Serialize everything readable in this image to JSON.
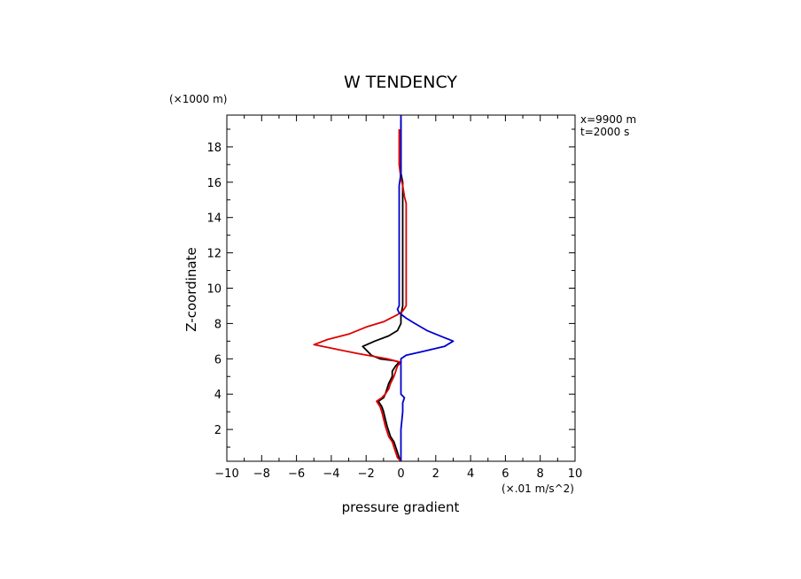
{
  "chart_data": {
    "type": "line",
    "title": "W TENDENCY",
    "xlabel": "pressure gradient",
    "x_units": "(×.01 m/s^2)",
    "ylabel": "Z-coordinate",
    "y_units": "(×1000 m)",
    "annotations": [
      "x=9900 m",
      "t=2000 s"
    ],
    "xlim": [
      -10,
      10
    ],
    "ylim": [
      0.2,
      19.8
    ],
    "xticks": [
      -10,
      -8,
      -6,
      -4,
      -2,
      0,
      2,
      4,
      6,
      8,
      10
    ],
    "yticks": [
      2,
      4,
      6,
      8,
      10,
      12,
      14,
      16,
      18
    ],
    "grid": false,
    "series": [
      {
        "color": "#000000",
        "points": [
          [
            0.0,
            0.2
          ],
          [
            -0.1,
            0.4
          ],
          [
            -0.2,
            0.7
          ],
          [
            -0.3,
            1.0
          ],
          [
            -0.4,
            1.3
          ],
          [
            -0.6,
            1.6
          ],
          [
            -0.8,
            2.2
          ],
          [
            -0.9,
            2.6
          ],
          [
            -1.0,
            3.0
          ],
          [
            -1.1,
            3.3
          ],
          [
            -1.3,
            3.6
          ],
          [
            -1.0,
            3.8
          ],
          [
            -0.9,
            4.0
          ],
          [
            -0.8,
            4.3
          ],
          [
            -0.7,
            4.6
          ],
          [
            -0.5,
            5.0
          ],
          [
            -0.5,
            5.3
          ],
          [
            -0.3,
            5.6
          ],
          [
            -0.1,
            5.8
          ],
          [
            -0.4,
            5.9
          ],
          [
            -1.2,
            6.0
          ],
          [
            -1.7,
            6.2
          ],
          [
            -2.2,
            6.7
          ],
          [
            -1.5,
            7.0
          ],
          [
            -0.7,
            7.3
          ],
          [
            -0.2,
            7.6
          ],
          [
            0.0,
            8.0
          ],
          [
            0.0,
            8.5
          ],
          [
            0.1,
            9.0
          ],
          [
            0.1,
            10.0
          ],
          [
            0.1,
            12.0
          ],
          [
            0.1,
            14.0
          ],
          [
            0.1,
            15.5
          ],
          [
            0.1,
            16.0
          ],
          [
            0.0,
            16.5
          ],
          [
            0.0,
            17.5
          ],
          [
            0.0,
            18.5
          ],
          [
            0.0,
            19.5
          ]
        ]
      },
      {
        "color": "#dd0000",
        "points": [
          [
            0.0,
            0.2
          ],
          [
            -0.2,
            0.4
          ],
          [
            -0.3,
            0.7
          ],
          [
            -0.4,
            1.0
          ],
          [
            -0.5,
            1.3
          ],
          [
            -0.7,
            1.6
          ],
          [
            -0.9,
            2.2
          ],
          [
            -1.0,
            2.6
          ],
          [
            -1.1,
            3.0
          ],
          [
            -1.2,
            3.3
          ],
          [
            -1.4,
            3.6
          ],
          [
            -1.1,
            3.8
          ],
          [
            -0.9,
            4.0
          ],
          [
            -0.7,
            4.3
          ],
          [
            -0.6,
            4.6
          ],
          [
            -0.4,
            5.0
          ],
          [
            -0.3,
            5.3
          ],
          [
            -0.2,
            5.6
          ],
          [
            0.0,
            5.8
          ],
          [
            -0.8,
            6.0
          ],
          [
            -2.5,
            6.3
          ],
          [
            -4.0,
            6.6
          ],
          [
            -5.0,
            6.8
          ],
          [
            -4.2,
            7.1
          ],
          [
            -3.0,
            7.4
          ],
          [
            -2.0,
            7.8
          ],
          [
            -1.0,
            8.1
          ],
          [
            -0.2,
            8.5
          ],
          [
            0.1,
            8.7
          ],
          [
            0.3,
            9.0
          ],
          [
            0.3,
            10.0
          ],
          [
            0.3,
            12.0
          ],
          [
            0.3,
            14.0
          ],
          [
            0.3,
            14.8
          ],
          [
            0.2,
            15.2
          ],
          [
            0.1,
            15.8
          ],
          [
            0.0,
            16.2
          ],
          [
            -0.1,
            17.0
          ],
          [
            -0.1,
            18.0
          ],
          [
            -0.1,
            19.0
          ]
        ]
      },
      {
        "color": "#0000cc",
        "points": [
          [
            0.0,
            0.2
          ],
          [
            0.0,
            1.0
          ],
          [
            0.0,
            2.0
          ],
          [
            0.1,
            3.0
          ],
          [
            0.1,
            3.5
          ],
          [
            0.2,
            3.8
          ],
          [
            0.1,
            3.9
          ],
          [
            0.0,
            4.0
          ],
          [
            0.0,
            5.0
          ],
          [
            0.0,
            6.0
          ],
          [
            0.3,
            6.2
          ],
          [
            1.2,
            6.4
          ],
          [
            2.5,
            6.7
          ],
          [
            3.0,
            7.0
          ],
          [
            2.5,
            7.2
          ],
          [
            1.5,
            7.6
          ],
          [
            0.8,
            8.0
          ],
          [
            0.3,
            8.3
          ],
          [
            -0.1,
            8.6
          ],
          [
            -0.2,
            8.8
          ],
          [
            -0.1,
            9.0
          ],
          [
            -0.1,
            10.0
          ],
          [
            -0.1,
            12.0
          ],
          [
            -0.1,
            14.0
          ],
          [
            -0.1,
            15.0
          ],
          [
            -0.1,
            15.8
          ],
          [
            0.0,
            16.5
          ],
          [
            0.0,
            17.5
          ],
          [
            0.0,
            18.5
          ],
          [
            0.0,
            19.5
          ],
          [
            0.0,
            19.8
          ]
        ]
      }
    ]
  }
}
